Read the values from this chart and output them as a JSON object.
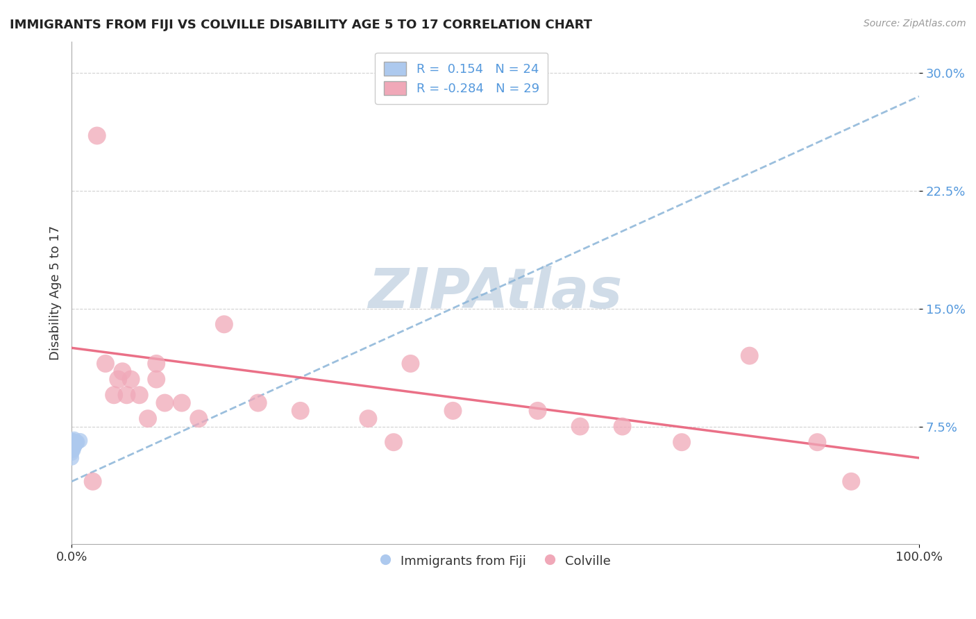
{
  "title": "IMMIGRANTS FROM FIJI VS COLVILLE DISABILITY AGE 5 TO 17 CORRELATION CHART",
  "source": "Source: ZipAtlas.com",
  "ylabel": "Disability Age 5 to 17",
  "xlim": [
    0.0,
    1.0
  ],
  "ylim": [
    0.0,
    0.32
  ],
  "ytick_vals": [
    0.075,
    0.15,
    0.225,
    0.3
  ],
  "ytick_labels": [
    "7.5%",
    "15.0%",
    "22.5%",
    "30.0%"
  ],
  "xtick_vals": [
    0.0,
    1.0
  ],
  "xtick_labels": [
    "0.0%",
    "100.0%"
  ],
  "legend_r1": "R =  0.154",
  "legend_n1": "N = 24",
  "legend_r2": "R = -0.284",
  "legend_n2": "N = 29",
  "blue_color": "#adc9ee",
  "pink_color": "#f0a8b8",
  "blue_line_color": "#8ab4d8",
  "pink_line_color": "#e8607a",
  "blue_trendline": [
    [
      0.0,
      0.04
    ],
    [
      1.0,
      0.285
    ]
  ],
  "pink_trendline": [
    [
      0.0,
      0.125
    ],
    [
      1.0,
      0.055
    ]
  ],
  "watermark_text": "ZIPAtlas",
  "watermark_color": "#d0dce8",
  "fiji_points_x": [
    0.0,
    0.0,
    0.0,
    0.0,
    0.0,
    0.0,
    0.001,
    0.001,
    0.001,
    0.001,
    0.002,
    0.002,
    0.002,
    0.002,
    0.003,
    0.003,
    0.003,
    0.003,
    0.004,
    0.004,
    0.005,
    0.006,
    0.007,
    0.01
  ],
  "fiji_points_y": [
    0.055,
    0.058,
    0.06,
    0.062,
    0.064,
    0.066,
    0.06,
    0.062,
    0.064,
    0.066,
    0.06,
    0.062,
    0.064,
    0.066,
    0.062,
    0.063,
    0.065,
    0.067,
    0.063,
    0.065,
    0.064,
    0.065,
    0.065,
    0.066
  ],
  "colville_points_x": [
    0.025,
    0.03,
    0.04,
    0.05,
    0.055,
    0.06,
    0.065,
    0.07,
    0.08,
    0.09,
    0.1,
    0.1,
    0.11,
    0.13,
    0.15,
    0.18,
    0.22,
    0.27,
    0.35,
    0.38,
    0.4,
    0.45,
    0.55,
    0.6,
    0.65,
    0.72,
    0.8,
    0.88,
    0.92
  ],
  "colville_points_y": [
    0.04,
    0.26,
    0.115,
    0.095,
    0.105,
    0.11,
    0.095,
    0.105,
    0.095,
    0.08,
    0.105,
    0.115,
    0.09,
    0.09,
    0.08,
    0.14,
    0.09,
    0.085,
    0.08,
    0.065,
    0.115,
    0.085,
    0.085,
    0.075,
    0.075,
    0.065,
    0.12,
    0.065,
    0.04
  ],
  "title_fontsize": 13,
  "tick_fontsize": 13,
  "label_fontsize": 13,
  "source_fontsize": 10
}
